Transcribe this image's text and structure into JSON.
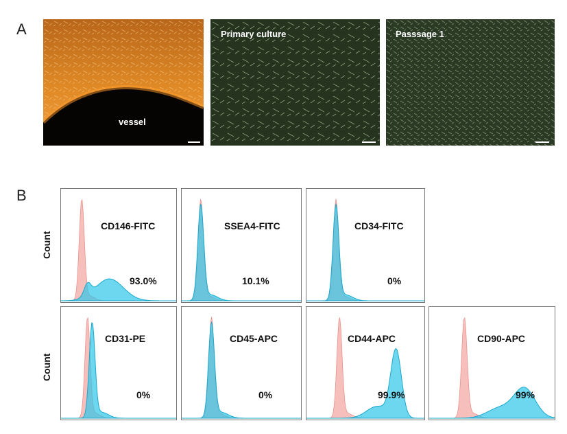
{
  "panel_a": {
    "letter": "A",
    "images": [
      {
        "label": "vessel"
      },
      {
        "label": "Primary culture"
      },
      {
        "label": "Passsage 1"
      }
    ]
  },
  "panel_b": {
    "letter": "B",
    "y_label": "Count",
    "histograms": [
      {
        "marker": "CD146-FITC",
        "percent": "93.0%",
        "control_peak": 0.18,
        "sample_peak": 0.42,
        "sample_shape": "broad-low"
      },
      {
        "marker": "SSEA4-FITC",
        "percent": "10.1%",
        "control_peak": 0.16,
        "sample_peak": 0.16,
        "sample_shape": "narrow"
      },
      {
        "marker": "CD34-FITC",
        "percent": "0%",
        "control_peak": 0.25,
        "sample_peak": 0.25,
        "sample_shape": "narrow"
      },
      {
        "marker": "CD31-PE",
        "percent": "0%",
        "control_peak": 0.23,
        "sample_peak": 0.27,
        "sample_shape": "narrow"
      },
      {
        "marker": "CD45-APC",
        "percent": "0%",
        "control_peak": 0.25,
        "sample_peak": 0.25,
        "sample_shape": "narrow"
      },
      {
        "marker": "CD44-APC",
        "percent": "99.9%",
        "control_peak": 0.28,
        "sample_peak": 0.76,
        "sample_shape": "shifted"
      },
      {
        "marker": "CD90-APC",
        "percent": "99%",
        "control_peak": 0.28,
        "sample_peak": 0.76,
        "sample_shape": "shifted-broad"
      }
    ]
  },
  "colors": {
    "control": "#f6b4b0",
    "sample": "#2ec6e8",
    "vessel_tissue": "#c8781e",
    "culture_bg": "#2a3a22"
  }
}
